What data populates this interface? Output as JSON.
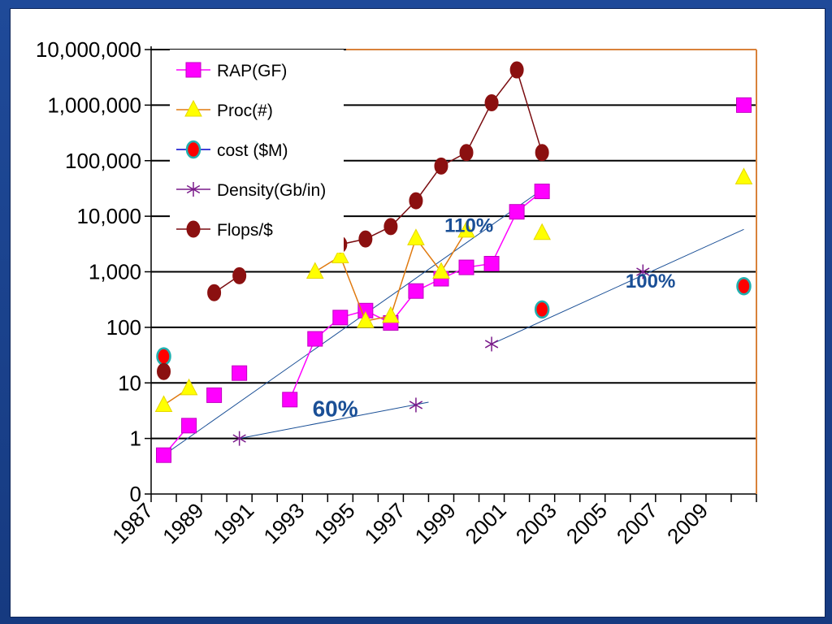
{
  "chart_data": {
    "type": "line",
    "title": "",
    "xlabel": "",
    "ylabel": "",
    "y_scale": "log",
    "ylim": [
      0.1,
      10000000
    ],
    "xlim": [
      1987,
      2011
    ],
    "y_ticks": [
      {
        "value": 0.1,
        "label": "0"
      },
      {
        "value": 1,
        "label": "1"
      },
      {
        "value": 10,
        "label": "10"
      },
      {
        "value": 100,
        "label": "100"
      },
      {
        "value": 1000,
        "label": "1,000"
      },
      {
        "value": 10000,
        "label": "10,000"
      },
      {
        "value": 100000,
        "label": "100,000"
      },
      {
        "value": 1000000,
        "label": "1,000,000"
      },
      {
        "value": 10000000,
        "label": "10,000,000"
      }
    ],
    "x_tick_labels": [
      "1987",
      "1989",
      "1991",
      "1993",
      "1995",
      "1997",
      "1999",
      "2001",
      "2003",
      "2005",
      "2007",
      "2009"
    ],
    "x_label_years": [
      1987,
      1989,
      1991,
      1993,
      1995,
      1997,
      1999,
      2001,
      2003,
      2005,
      2007,
      2009
    ],
    "gridlines": "horizontal",
    "legend_position": "top-left",
    "series": [
      {
        "name": "RAP(GF)",
        "color": "#ff00ff",
        "marker": "square",
        "segments": [
          [
            [
              1987.5,
              0.5
            ],
            [
              1988.5,
              1.7
            ]
          ],
          [
            [
              1992.5,
              5
            ],
            [
              1993.5,
              62
            ],
            [
              1994.5,
              150
            ],
            [
              1995.5,
              200
            ],
            [
              1996.5,
              120
            ],
            [
              1997.5,
              450
            ],
            [
              1998.5,
              750
            ],
            [
              1999.5,
              1200
            ],
            [
              2000.5,
              1400
            ],
            [
              2001.5,
              12000
            ],
            [
              2002.5,
              28000
            ]
          ]
        ],
        "isolated": [
          [
            1989.5,
            6
          ],
          [
            1990.5,
            15
          ],
          [
            2010.5,
            1000000
          ]
        ]
      },
      {
        "name": "Proc(#)",
        "color": "#e07a10",
        "marker": "triangle",
        "marker_color": "#ffff00",
        "segments": [
          [
            [
              1987.5,
              4
            ],
            [
              1988.5,
              8
            ]
          ],
          [
            [
              1993.5,
              1000
            ],
            [
              1994.5,
              1900
            ],
            [
              1995.5,
              130
            ],
            [
              1996.5,
              160
            ],
            [
              1997.5,
              4000
            ],
            [
              1998.5,
              1000
            ],
            [
              1999.5,
              5500
            ]
          ]
        ],
        "isolated": [
          [
            2002.5,
            5000
          ],
          [
            2010.5,
            50000
          ]
        ]
      },
      {
        "name": "cost ($M)",
        "color": "#0000cc",
        "marker": "circle",
        "marker_color": "#ff0000",
        "marker_edge": "#20b0b0",
        "segments": [],
        "isolated": [
          [
            1987.5,
            30
          ],
          [
            2002.5,
            210
          ],
          [
            2010.5,
            550
          ]
        ]
      },
      {
        "name": "Density(Gb/in)",
        "color": "#7a1a8a",
        "marker": "asterisk",
        "segments": [],
        "isolated": [
          [
            1990.5,
            1
          ],
          [
            1997.5,
            4
          ],
          [
            2000.5,
            50
          ],
          [
            2006.5,
            1000
          ]
        ]
      },
      {
        "name": "Flops/$",
        "color": "#7a0c10",
        "marker": "circle",
        "marker_color": "#8b1010",
        "segments": [
          [
            [
              1989.5,
              420
            ],
            [
              1990.5,
              850
            ]
          ],
          [
            [
              1993.5,
              7000
            ],
            [
              1994.5,
              3100
            ],
            [
              1995.5,
              3900
            ],
            [
              1996.5,
              6500
            ],
            [
              1997.5,
              19000
            ],
            [
              1998.5,
              80000
            ],
            [
              1999.5,
              140000
            ],
            [
              2000.5,
              1100000
            ],
            [
              2001.5,
              4300000
            ],
            [
              2002.5,
              140000
            ]
          ]
        ],
        "isolated": [
          [
            1987.5,
            16
          ]
        ]
      }
    ],
    "trend_lines": [
      {
        "label": "60%",
        "color": "#1a4f96",
        "from": [
          1990.5,
          1
        ],
        "to": [
          1998,
          4.5
        ],
        "label_at": [
          1994.3,
          2.5
        ],
        "label_size": 28
      },
      {
        "label": "110%",
        "color": "#1a4f96",
        "from": [
          1987.5,
          0.5
        ],
        "to": [
          2002.5,
          30000
        ],
        "label_at": [
          1999.6,
          5200
        ],
        "label_size": 24
      },
      {
        "label": "100%",
        "color": "#1a4f96",
        "from": [
          2000.5,
          50
        ],
        "to": [
          2010.5,
          5800
        ],
        "label_at": [
          2006.8,
          520
        ],
        "label_size": 24
      }
    ]
  }
}
